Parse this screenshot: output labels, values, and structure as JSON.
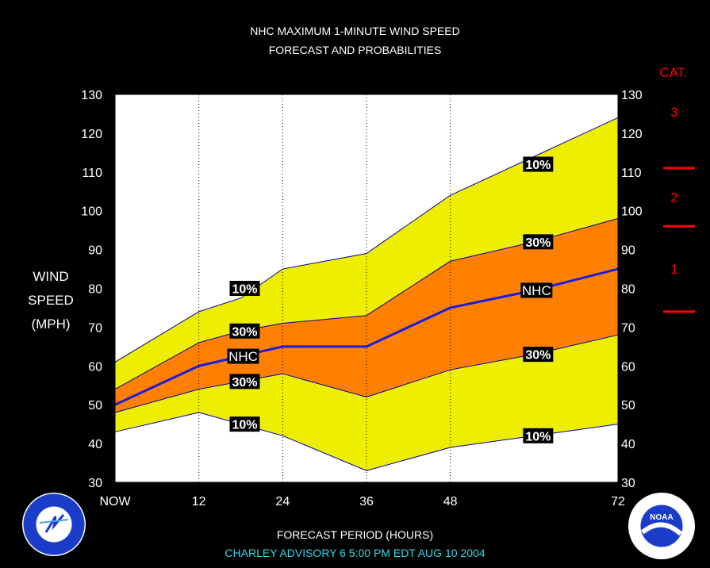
{
  "header": {
    "title_line1": "NHC MAXIMUM 1-MINUTE WIND SPEED",
    "title_line2": "FORECAST AND PROBABILITIES"
  },
  "y_axis_label": [
    "WIND",
    "SPEED",
    "(MPH)"
  ],
  "x_axis_label": "FORECAST PERIOD (HOURS)",
  "footer": "CHARLEY   ADVISORY  6 5:00  PM  EDT AUG 10  2004",
  "cat_header": "CAT.",
  "cat_labels": [
    "3",
    "2",
    "1"
  ],
  "colors": {
    "yellow_band": "#EEEE00",
    "orange_band": "#FF8000",
    "nhc_line": "#1A1AE6",
    "category": "#FF0000",
    "footer_text": "#30D8E8"
  },
  "chart_data": {
    "type": "area",
    "title": "NHC MAXIMUM 1-MINUTE WIND SPEED FORECAST AND PROBABILITIES",
    "xlabel": "FORECAST PERIOD (HOURS)",
    "ylabel": "WIND SPEED (MPH)",
    "x": [
      0,
      12,
      24,
      36,
      48,
      72
    ],
    "x_tick_labels": [
      "NOW",
      "12",
      "24",
      "36",
      "48",
      "72"
    ],
    "xlim": [
      0,
      72
    ],
    "y_ticks": [
      30,
      40,
      50,
      60,
      70,
      80,
      90,
      100,
      110,
      120,
      130
    ],
    "ylim": [
      30,
      130
    ],
    "series": [
      {
        "name": "10%",
        "x": [
          0,
          12,
          18,
          24,
          36,
          48,
          60,
          72
        ],
        "values": [
          61,
          74,
          77.5,
          85,
          89,
          104,
          114,
          124
        ]
      },
      {
        "name": "30%",
        "x": [
          0,
          12,
          18,
          24,
          36,
          48,
          60,
          72
        ],
        "values": [
          54,
          66,
          69,
          71,
          73,
          87,
          92,
          98
        ]
      },
      {
        "name": "NHC",
        "x": [
          0,
          12,
          18,
          24,
          36,
          48,
          60,
          72
        ],
        "values": [
          50,
          60,
          62.5,
          65,
          65,
          75,
          79.5,
          85
        ]
      },
      {
        "name": "30%",
        "x": [
          0,
          12,
          18,
          24,
          36,
          48,
          60,
          72
        ],
        "values": [
          48,
          54,
          56,
          58,
          52,
          59,
          63,
          68
        ]
      },
      {
        "name": "10%",
        "x": [
          0,
          12,
          18,
          24,
          36,
          48,
          60,
          72
        ],
        "values": [
          43,
          48,
          45,
          42,
          33,
          39,
          42,
          45
        ]
      }
    ],
    "band_labels": [
      {
        "text": "10%",
        "x": 18,
        "y": 80
      },
      {
        "text": "30%",
        "x": 18,
        "y": 69
      },
      {
        "text": "NHC",
        "x": 18,
        "y": 62.5
      },
      {
        "text": "30%",
        "x": 18,
        "y": 56
      },
      {
        "text": "10%",
        "x": 18,
        "y": 45
      },
      {
        "text": "10%",
        "x": 60,
        "y": 112
      },
      {
        "text": "30%",
        "x": 60,
        "y": 92
      },
      {
        "text": "NHC",
        "x": 60,
        "y": 79.5
      },
      {
        "text": "30%",
        "x": 60,
        "y": 63
      },
      {
        "text": "10%",
        "x": 60,
        "y": 42
      }
    ],
    "category_thresholds": [
      74,
      96,
      111
    ],
    "grid": "vertical dotted"
  }
}
